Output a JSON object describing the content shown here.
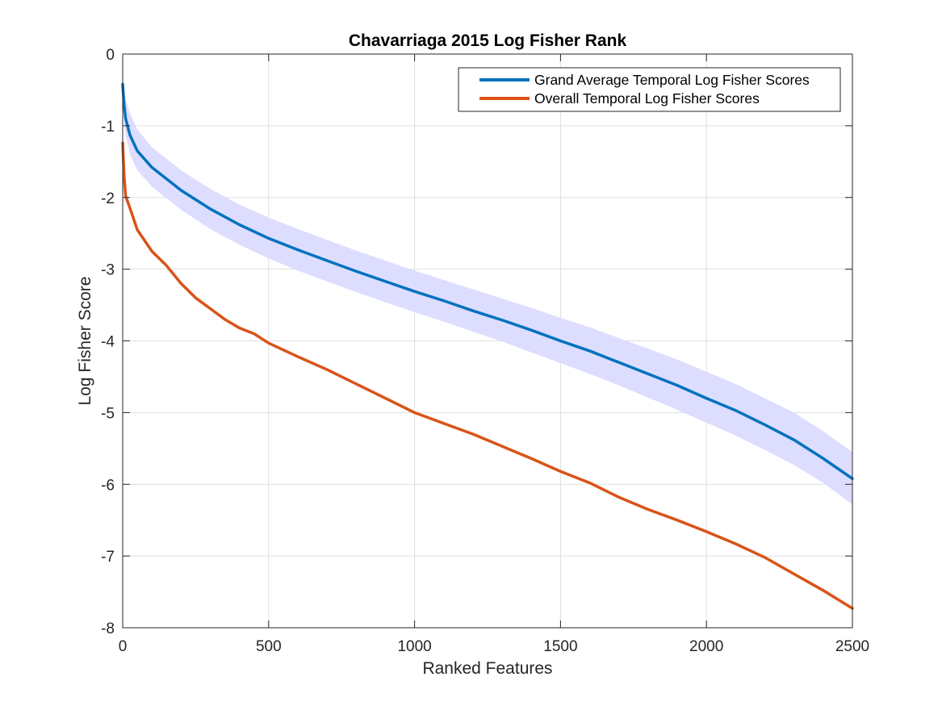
{
  "chart_data": {
    "type": "line",
    "title": "Chavarriaga 2015 Log Fisher Rank",
    "xlabel": "Ranked Features",
    "ylabel": "Log Fisher Score",
    "xlim": [
      0,
      2500
    ],
    "ylim": [
      -8,
      0
    ],
    "xticks": [
      "0",
      "500",
      "1000",
      "1500",
      "2000",
      "2500"
    ],
    "yticks": [
      "0",
      "-1",
      "-2",
      "-3",
      "-4",
      "-5",
      "-6",
      "-7",
      "-8"
    ],
    "grid": true,
    "legend_position": "top-right",
    "series": [
      {
        "name": "Grand Average Temporal Log Fisher Scores",
        "color": "#0072BD",
        "x": [
          0,
          5,
          10,
          25,
          50,
          100,
          200,
          300,
          400,
          500,
          600,
          700,
          800,
          900,
          1000,
          1100,
          1200,
          1300,
          1400,
          1500,
          1600,
          1700,
          1800,
          1900,
          2000,
          2100,
          2200,
          2300,
          2400,
          2500
        ],
        "y": [
          -0.42,
          -0.72,
          -0.9,
          -1.13,
          -1.35,
          -1.58,
          -1.9,
          -2.16,
          -2.38,
          -2.57,
          -2.73,
          -2.88,
          -3.03,
          -3.17,
          -3.31,
          -3.44,
          -3.58,
          -3.71,
          -3.85,
          -4.0,
          -4.14,
          -4.3,
          -4.46,
          -4.62,
          -4.8,
          -4.97,
          -5.17,
          -5.38,
          -5.64,
          -5.92
        ],
        "band_upper": [
          -0.42,
          -0.5,
          -0.62,
          -0.83,
          -1.05,
          -1.3,
          -1.62,
          -1.88,
          -2.1,
          -2.28,
          -2.44,
          -2.59,
          -2.74,
          -2.88,
          -3.02,
          -3.15,
          -3.28,
          -3.41,
          -3.54,
          -3.68,
          -3.81,
          -3.96,
          -4.11,
          -4.26,
          -4.43,
          -4.6,
          -4.8,
          -5.0,
          -5.26,
          -5.55
        ],
        "band_lower": [
          -0.42,
          -0.95,
          -1.12,
          -1.4,
          -1.62,
          -1.85,
          -2.17,
          -2.44,
          -2.66,
          -2.85,
          -3.02,
          -3.17,
          -3.32,
          -3.46,
          -3.6,
          -3.73,
          -3.87,
          -4.01,
          -4.16,
          -4.31,
          -4.46,
          -4.62,
          -4.79,
          -4.96,
          -5.14,
          -5.32,
          -5.52,
          -5.73,
          -5.98,
          -6.28
        ],
        "band_color": "#DDDDFF"
      },
      {
        "name": "Overall Temporal Log Fisher Scores",
        "color": "#D95319",
        "x": [
          0,
          5,
          10,
          25,
          50,
          100,
          150,
          200,
          250,
          300,
          350,
          400,
          450,
          500,
          600,
          700,
          800,
          900,
          1000,
          1100,
          1200,
          1300,
          1400,
          1500,
          1600,
          1700,
          1800,
          1900,
          2000,
          2100,
          2200,
          2300,
          2400,
          2500
        ],
        "y": [
          -1.24,
          -1.7,
          -1.98,
          -2.15,
          -2.45,
          -2.75,
          -2.95,
          -3.2,
          -3.4,
          -3.55,
          -3.7,
          -3.82,
          -3.9,
          -4.03,
          -4.22,
          -4.4,
          -4.6,
          -4.8,
          -5.0,
          -5.15,
          -5.3,
          -5.47,
          -5.64,
          -5.82,
          -5.98,
          -6.18,
          -6.35,
          -6.5,
          -6.66,
          -6.83,
          -7.02,
          -7.25,
          -7.48,
          -7.73
        ]
      }
    ]
  }
}
